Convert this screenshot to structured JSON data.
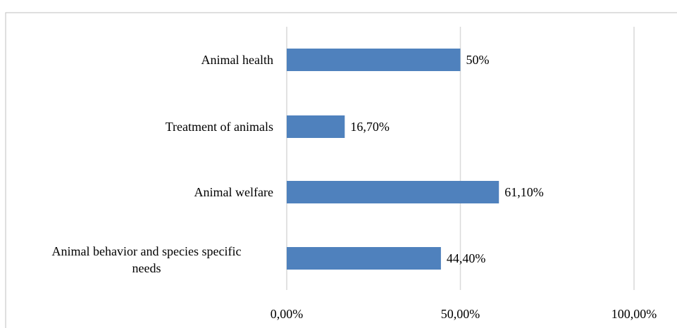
{
  "chart_data": {
    "type": "bar",
    "orientation": "horizontal",
    "categories": [
      "Animal health",
      "Treatment of animals",
      "Animal welfare",
      "Animal behavior and species specific needs"
    ],
    "values": [
      50,
      16.7,
      61.1,
      44.4
    ],
    "data_labels": [
      "50%",
      "16,70%",
      "61,10%",
      "44,40%"
    ],
    "xlim": [
      0,
      100
    ],
    "x_ticks": [
      0,
      50,
      100
    ],
    "x_tick_labels": [
      "0,00%",
      "50,00%",
      "100,00%"
    ],
    "title": "",
    "xlabel": "",
    "ylabel": "",
    "grid": true,
    "bar_color": "#4f81bd",
    "grid_color": "#d9d9d9",
    "text_color": "#000000"
  }
}
